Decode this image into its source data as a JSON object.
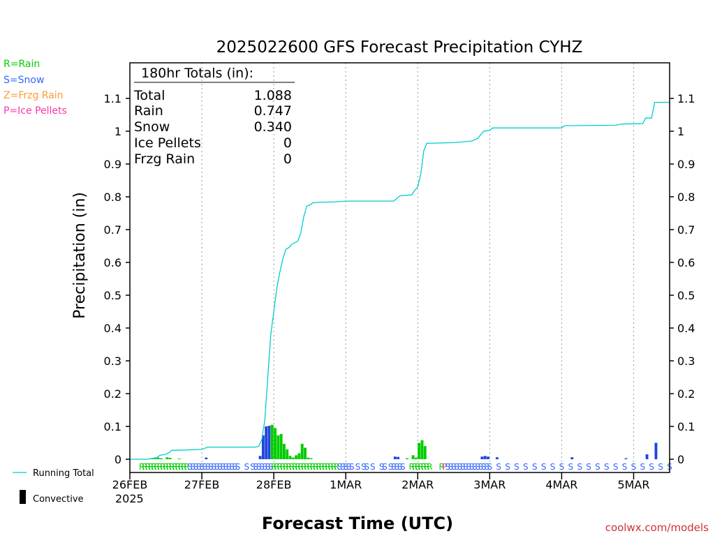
{
  "chart_data": {
    "type": "bar",
    "title": "2025022600 GFS Forecast Precipitation CYHZ",
    "xlabel": "Forecast Time (UTC)",
    "ylabel": "Precipitation (in)",
    "ylim": [
      0,
      1.2
    ],
    "yticks": [
      "0",
      "0.1",
      "0.2",
      "0.3",
      "0.4",
      "0.5",
      "0.6",
      "0.7",
      "0.8",
      "0.9",
      "1",
      "1.1"
    ],
    "x_ticks": [
      {
        "label": "26FEB",
        "hours": 0
      },
      {
        "label": "27FEB",
        "hours": 24
      },
      {
        "label": "28FEB",
        "hours": 48
      },
      {
        "label": "1MAR",
        "hours": 72
      },
      {
        "label": "2MAR",
        "hours": 96
      },
      {
        "label": "3MAR",
        "hours": 120
      },
      {
        "label": "4MAR",
        "hours": 144
      },
      {
        "label": "5MAR",
        "hours": 168
      }
    ],
    "x_year": "2025",
    "grid": "vertical-dotted",
    "legend_left": [
      {
        "text": "R=Rain",
        "color": "#00cc00"
      },
      {
        "text": "S=Snow",
        "color": "#3366ff"
      },
      {
        "text": "Z=Frzg Rain",
        "color": "#ff9933"
      },
      {
        "text": "P=Ice Pellets",
        "color": "#ff33aa"
      }
    ],
    "legend_bottom": [
      {
        "text": "Running Total",
        "color": "#00cccc"
      },
      {
        "text": "Convective",
        "color": "#000000"
      }
    ],
    "totals_box": {
      "header": "180hr Totals (in):",
      "rows": [
        {
          "label": "Total",
          "value": "1.088"
        },
        {
          "label": "Rain",
          "value": "0.747"
        },
        {
          "label": "Snow",
          "value": "0.340"
        },
        {
          "label": "Ice Pellets",
          "value": "0"
        },
        {
          "label": "Frzg Rain",
          "value": "0"
        }
      ]
    },
    "credit": "coolwx.com/models",
    "colors": {
      "rain": "#00cc00",
      "snow": "#2244dd",
      "total": "#00cccc",
      "convective": "#000000"
    },
    "running_total": [
      {
        "hours": 0,
        "value": 0
      },
      {
        "hours": 6,
        "value": 0
      },
      {
        "hours": 9,
        "value": 0.005
      },
      {
        "hours": 10,
        "value": 0.012
      },
      {
        "hours": 12,
        "value": 0.015
      },
      {
        "hours": 13,
        "value": 0.02
      },
      {
        "hours": 14,
        "value": 0.027
      },
      {
        "hours": 18,
        "value": 0.028
      },
      {
        "hours": 24,
        "value": 0.03
      },
      {
        "hours": 26,
        "value": 0.037
      },
      {
        "hours": 42,
        "value": 0.037
      },
      {
        "hours": 43,
        "value": 0.04
      },
      {
        "hours": 44,
        "value": 0.06
      },
      {
        "hours": 45,
        "value": 0.12
      },
      {
        "hours": 46,
        "value": 0.25
      },
      {
        "hours": 47,
        "value": 0.38
      },
      {
        "hours": 48,
        "value": 0.45
      },
      {
        "hours": 49,
        "value": 0.52
      },
      {
        "hours": 50,
        "value": 0.57
      },
      {
        "hours": 51,
        "value": 0.61
      },
      {
        "hours": 52,
        "value": 0.64
      },
      {
        "hours": 53,
        "value": 0.645
      },
      {
        "hours": 54,
        "value": 0.655
      },
      {
        "hours": 56,
        "value": 0.665
      },
      {
        "hours": 57,
        "value": 0.69
      },
      {
        "hours": 58,
        "value": 0.74
      },
      {
        "hours": 59,
        "value": 0.772
      },
      {
        "hours": 60,
        "value": 0.775
      },
      {
        "hours": 61,
        "value": 0.782
      },
      {
        "hours": 63,
        "value": 0.783
      },
      {
        "hours": 69,
        "value": 0.785
      },
      {
        "hours": 72,
        "value": 0.787
      },
      {
        "hours": 88,
        "value": 0.787
      },
      {
        "hours": 90,
        "value": 0.803
      },
      {
        "hours": 94,
        "value": 0.806
      },
      {
        "hours": 95,
        "value": 0.82
      },
      {
        "hours": 96,
        "value": 0.83
      },
      {
        "hours": 97,
        "value": 0.87
      },
      {
        "hours": 98,
        "value": 0.94
      },
      {
        "hours": 99,
        "value": 0.963
      },
      {
        "hours": 108,
        "value": 0.965
      },
      {
        "hours": 114,
        "value": 0.97
      },
      {
        "hours": 116,
        "value": 0.978
      },
      {
        "hours": 118,
        "value": 1.0
      },
      {
        "hours": 120,
        "value": 1.003
      },
      {
        "hours": 121,
        "value": 1.01
      },
      {
        "hours": 144,
        "value": 1.01
      },
      {
        "hours": 145,
        "value": 1.017
      },
      {
        "hours": 162,
        "value": 1.018
      },
      {
        "hours": 164,
        "value": 1.022
      },
      {
        "hours": 171,
        "value": 1.023
      },
      {
        "hours": 172,
        "value": 1.04
      },
      {
        "hours": 174,
        "value": 1.04
      },
      {
        "hours": 175,
        "value": 1.088
      },
      {
        "hours": 180,
        "value": 1.088
      }
    ],
    "bars": [
      {
        "hours": 8,
        "value": 0.003,
        "type": "rain"
      },
      {
        "hours": 9,
        "value": 0.005,
        "type": "rain"
      },
      {
        "hours": 10,
        "value": 0.005,
        "type": "rain"
      },
      {
        "hours": 11,
        "value": 0.003,
        "type": "rain"
      },
      {
        "hours": 13,
        "value": 0.006,
        "type": "rain"
      },
      {
        "hours": 14,
        "value": 0.004,
        "type": "rain"
      },
      {
        "hours": 17,
        "value": 0.002,
        "type": "rain"
      },
      {
        "hours": 26,
        "value": 0.005,
        "type": "snow"
      },
      {
        "hours": 44,
        "value": 0.01,
        "type": "snow"
      },
      {
        "hours": 45,
        "value": 0.073,
        "type": "snow"
      },
      {
        "hours": 46,
        "value": 0.1,
        "type": "snow"
      },
      {
        "hours": 47,
        "value": 0.102,
        "type": "snow"
      },
      {
        "hours": 48,
        "value": 0.105,
        "type": "rain"
      },
      {
        "hours": 49,
        "value": 0.095,
        "type": "rain"
      },
      {
        "hours": 50,
        "value": 0.073,
        "type": "rain"
      },
      {
        "hours": 51,
        "value": 0.077,
        "type": "rain"
      },
      {
        "hours": 52,
        "value": 0.047,
        "type": "rain"
      },
      {
        "hours": 53,
        "value": 0.03,
        "type": "rain"
      },
      {
        "hours": 54,
        "value": 0.01,
        "type": "rain"
      },
      {
        "hours": 55,
        "value": 0.005,
        "type": "rain"
      },
      {
        "hours": 56,
        "value": 0.012,
        "type": "rain"
      },
      {
        "hours": 57,
        "value": 0.018,
        "type": "rain"
      },
      {
        "hours": 58,
        "value": 0.047,
        "type": "rain"
      },
      {
        "hours": 59,
        "value": 0.035,
        "type": "rain"
      },
      {
        "hours": 60,
        "value": 0.005,
        "type": "rain"
      },
      {
        "hours": 61,
        "value": 0.003,
        "type": "rain"
      },
      {
        "hours": 89,
        "value": 0.008,
        "type": "snow"
      },
      {
        "hours": 90,
        "value": 0.007,
        "type": "snow"
      },
      {
        "hours": 93,
        "value": 0.003,
        "type": "rain"
      },
      {
        "hours": 95,
        "value": 0.012,
        "type": "rain"
      },
      {
        "hours": 96,
        "value": 0.005,
        "type": "rain"
      },
      {
        "hours": 97,
        "value": 0.05,
        "type": "rain"
      },
      {
        "hours": 98,
        "value": 0.058,
        "type": "rain"
      },
      {
        "hours": 99,
        "value": 0.04,
        "type": "rain"
      },
      {
        "hours": 118,
        "value": 0.008,
        "type": "snow"
      },
      {
        "hours": 119,
        "value": 0.01,
        "type": "snow"
      },
      {
        "hours": 120,
        "value": 0.008,
        "type": "snow"
      },
      {
        "hours": 123,
        "value": 0.006,
        "type": "snow"
      },
      {
        "hours": 148,
        "value": 0.006,
        "type": "snow"
      },
      {
        "hours": 166,
        "value": 0.003,
        "type": "snow"
      },
      {
        "hours": 173,
        "value": 0.015,
        "type": "snow"
      },
      {
        "hours": 176,
        "value": 0.05,
        "type": "snow"
      }
    ],
    "ptype_markers": [
      {
        "hours": 4,
        "letter": "R"
      },
      {
        "hours": 5,
        "letter": "R"
      },
      {
        "hours": 6,
        "letter": "R"
      },
      {
        "hours": 7,
        "letter": "R"
      },
      {
        "hours": 8,
        "letter": "R"
      },
      {
        "hours": 9,
        "letter": "R"
      },
      {
        "hours": 10,
        "letter": "R"
      },
      {
        "hours": 11,
        "letter": "R"
      },
      {
        "hours": 12,
        "letter": "R"
      },
      {
        "hours": 13,
        "letter": "R"
      },
      {
        "hours": 14,
        "letter": "R"
      },
      {
        "hours": 15,
        "letter": "R"
      },
      {
        "hours": 16,
        "letter": "R"
      },
      {
        "hours": 17,
        "letter": "R"
      },
      {
        "hours": 18,
        "letter": "R"
      },
      {
        "hours": 19,
        "letter": "R"
      },
      {
        "hours": 20,
        "letter": "S"
      },
      {
        "hours": 21,
        "letter": "S"
      },
      {
        "hours": 22,
        "letter": "S"
      },
      {
        "hours": 23,
        "letter": "S"
      },
      {
        "hours": 24,
        "letter": "S"
      },
      {
        "hours": 25,
        "letter": "S"
      },
      {
        "hours": 26,
        "letter": "S"
      },
      {
        "hours": 27,
        "letter": "S"
      },
      {
        "hours": 28,
        "letter": "S"
      },
      {
        "hours": 29,
        "letter": "S"
      },
      {
        "hours": 30,
        "letter": "S"
      },
      {
        "hours": 31,
        "letter": "S"
      },
      {
        "hours": 32,
        "letter": "S"
      },
      {
        "hours": 33,
        "letter": "S"
      },
      {
        "hours": 34,
        "letter": "S"
      },
      {
        "hours": 35,
        "letter": "S"
      },
      {
        "hours": 36,
        "letter": "S"
      },
      {
        "hours": 39,
        "letter": "S"
      },
      {
        "hours": 41,
        "letter": "S"
      },
      {
        "hours": 42,
        "letter": "S"
      },
      {
        "hours": 43,
        "letter": "S"
      },
      {
        "hours": 44,
        "letter": "S"
      },
      {
        "hours": 45,
        "letter": "S"
      },
      {
        "hours": 46,
        "letter": "S"
      },
      {
        "hours": 47,
        "letter": "S"
      },
      {
        "hours": 48,
        "letter": "R"
      },
      {
        "hours": 49,
        "letter": "R"
      },
      {
        "hours": 50,
        "letter": "R"
      },
      {
        "hours": 51,
        "letter": "R"
      },
      {
        "hours": 52,
        "letter": "R"
      },
      {
        "hours": 53,
        "letter": "R"
      },
      {
        "hours": 54,
        "letter": "R"
      },
      {
        "hours": 55,
        "letter": "R"
      },
      {
        "hours": 56,
        "letter": "R"
      },
      {
        "hours": 57,
        "letter": "R"
      },
      {
        "hours": 58,
        "letter": "R"
      },
      {
        "hours": 59,
        "letter": "R"
      },
      {
        "hours": 60,
        "letter": "R"
      },
      {
        "hours": 61,
        "letter": "R"
      },
      {
        "hours": 62,
        "letter": "R"
      },
      {
        "hours": 63,
        "letter": "R"
      },
      {
        "hours": 64,
        "letter": "R"
      },
      {
        "hours": 65,
        "letter": "R"
      },
      {
        "hours": 66,
        "letter": "R"
      },
      {
        "hours": 67,
        "letter": "R"
      },
      {
        "hours": 68,
        "letter": "R"
      },
      {
        "hours": 69,
        "letter": "R"
      },
      {
        "hours": 70,
        "letter": "S"
      },
      {
        "hours": 71,
        "letter": "S"
      },
      {
        "hours": 72,
        "letter": "S"
      },
      {
        "hours": 73,
        "letter": "S"
      },
      {
        "hours": 74,
        "letter": "S"
      },
      {
        "hours": 76,
        "letter": "S"
      },
      {
        "hours": 78,
        "letter": "S"
      },
      {
        "hours": 79,
        "letter": "S"
      },
      {
        "hours": 81,
        "letter": "S"
      },
      {
        "hours": 84,
        "letter": "S"
      },
      {
        "hours": 85,
        "letter": "S"
      },
      {
        "hours": 87,
        "letter": "S"
      },
      {
        "hours": 88,
        "letter": "S"
      },
      {
        "hours": 89,
        "letter": "S"
      },
      {
        "hours": 90,
        "letter": "S"
      },
      {
        "hours": 91,
        "letter": "S"
      },
      {
        "hours": 94,
        "letter": "R"
      },
      {
        "hours": 95,
        "letter": "R"
      },
      {
        "hours": 96,
        "letter": "R"
      },
      {
        "hours": 97,
        "letter": "R"
      },
      {
        "hours": 98,
        "letter": "R"
      },
      {
        "hours": 99,
        "letter": "R"
      },
      {
        "hours": 100,
        "letter": "R"
      },
      {
        "hours": 104,
        "letter": "R"
      },
      {
        "hours": 105,
        "letter": "P"
      },
      {
        "hours": 106,
        "letter": "S"
      },
      {
        "hours": 107,
        "letter": "S"
      },
      {
        "hours": 108,
        "letter": "S"
      },
      {
        "hours": 109,
        "letter": "S"
      },
      {
        "hours": 110,
        "letter": "S"
      },
      {
        "hours": 111,
        "letter": "S"
      },
      {
        "hours": 112,
        "letter": "S"
      },
      {
        "hours": 113,
        "letter": "S"
      },
      {
        "hours": 114,
        "letter": "S"
      },
      {
        "hours": 115,
        "letter": "S"
      },
      {
        "hours": 116,
        "letter": "S"
      },
      {
        "hours": 117,
        "letter": "S"
      },
      {
        "hours": 118,
        "letter": "S"
      },
      {
        "hours": 119,
        "letter": "S"
      },
      {
        "hours": 120,
        "letter": "S"
      },
      {
        "hours": 123,
        "letter": "S"
      },
      {
        "hours": 126,
        "letter": "S"
      },
      {
        "hours": 129,
        "letter": "S"
      },
      {
        "hours": 132,
        "letter": "S"
      },
      {
        "hours": 135,
        "letter": "S"
      },
      {
        "hours": 138,
        "letter": "S"
      },
      {
        "hours": 141,
        "letter": "S"
      },
      {
        "hours": 144,
        "letter": "S"
      },
      {
        "hours": 147,
        "letter": "S"
      },
      {
        "hours": 150,
        "letter": "S"
      },
      {
        "hours": 153,
        "letter": "S"
      },
      {
        "hours": 156,
        "letter": "S"
      },
      {
        "hours": 159,
        "letter": "S"
      },
      {
        "hours": 162,
        "letter": "S"
      },
      {
        "hours": 165,
        "letter": "S"
      },
      {
        "hours": 168,
        "letter": "S"
      },
      {
        "hours": 171,
        "letter": "S"
      },
      {
        "hours": 174,
        "letter": "S"
      },
      {
        "hours": 177,
        "letter": "S"
      },
      {
        "hours": 180,
        "letter": "S"
      }
    ]
  }
}
